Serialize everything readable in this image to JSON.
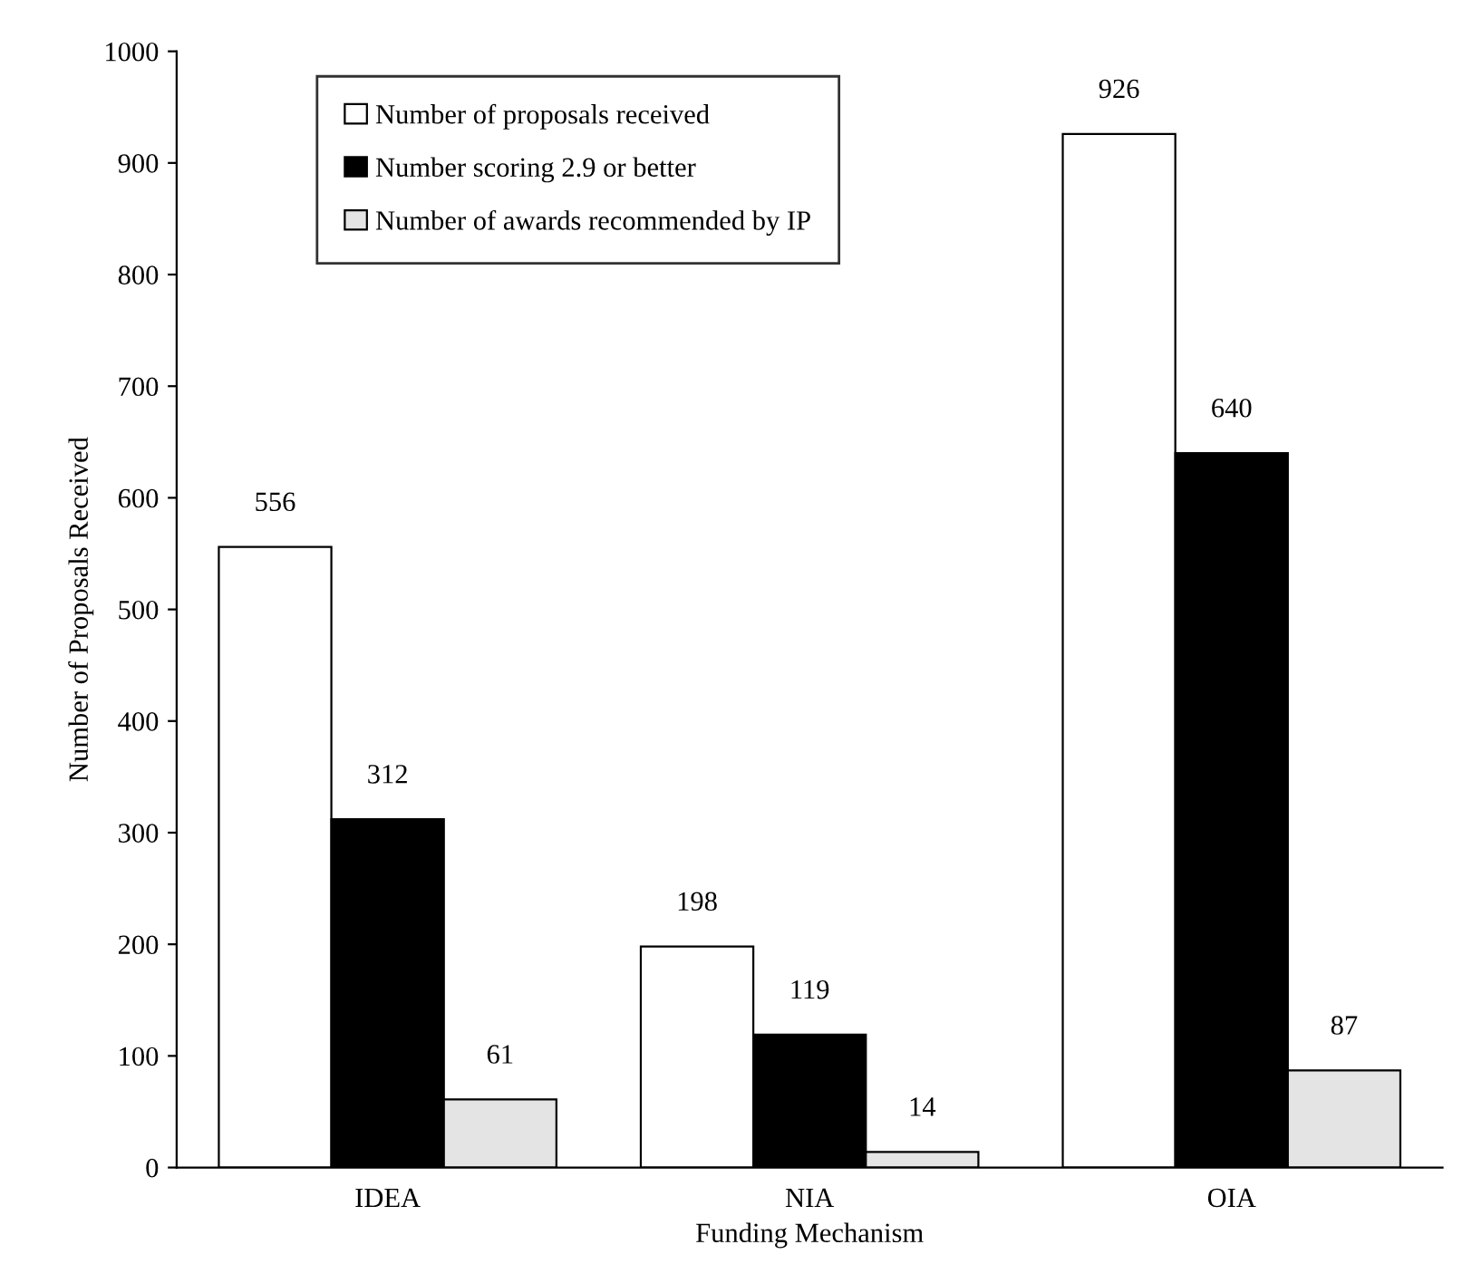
{
  "chart_data": {
    "type": "bar",
    "xlabel": "Funding Mechanism",
    "ylabel": "Number of Proposals Received",
    "categories": [
      "IDEA",
      "NIA",
      "OIA"
    ],
    "series": [
      {
        "name": "Number of proposals received",
        "color": "#ffffff",
        "values": [
          556,
          198,
          926
        ]
      },
      {
        "name": "Number scoring 2.9 or better",
        "color": "#000000",
        "values": [
          312,
          119,
          640
        ]
      },
      {
        "name": "Number of awards recommended by IP",
        "color": "#e4e4e4",
        "values": [
          61,
          14,
          87
        ]
      }
    ],
    "ylim": [
      0,
      1000
    ],
    "yticks": [
      0,
      100,
      200,
      300,
      400,
      500,
      600,
      700,
      800,
      900,
      1000
    ],
    "data_labels": true,
    "legend": "top left",
    "grid": false
  }
}
